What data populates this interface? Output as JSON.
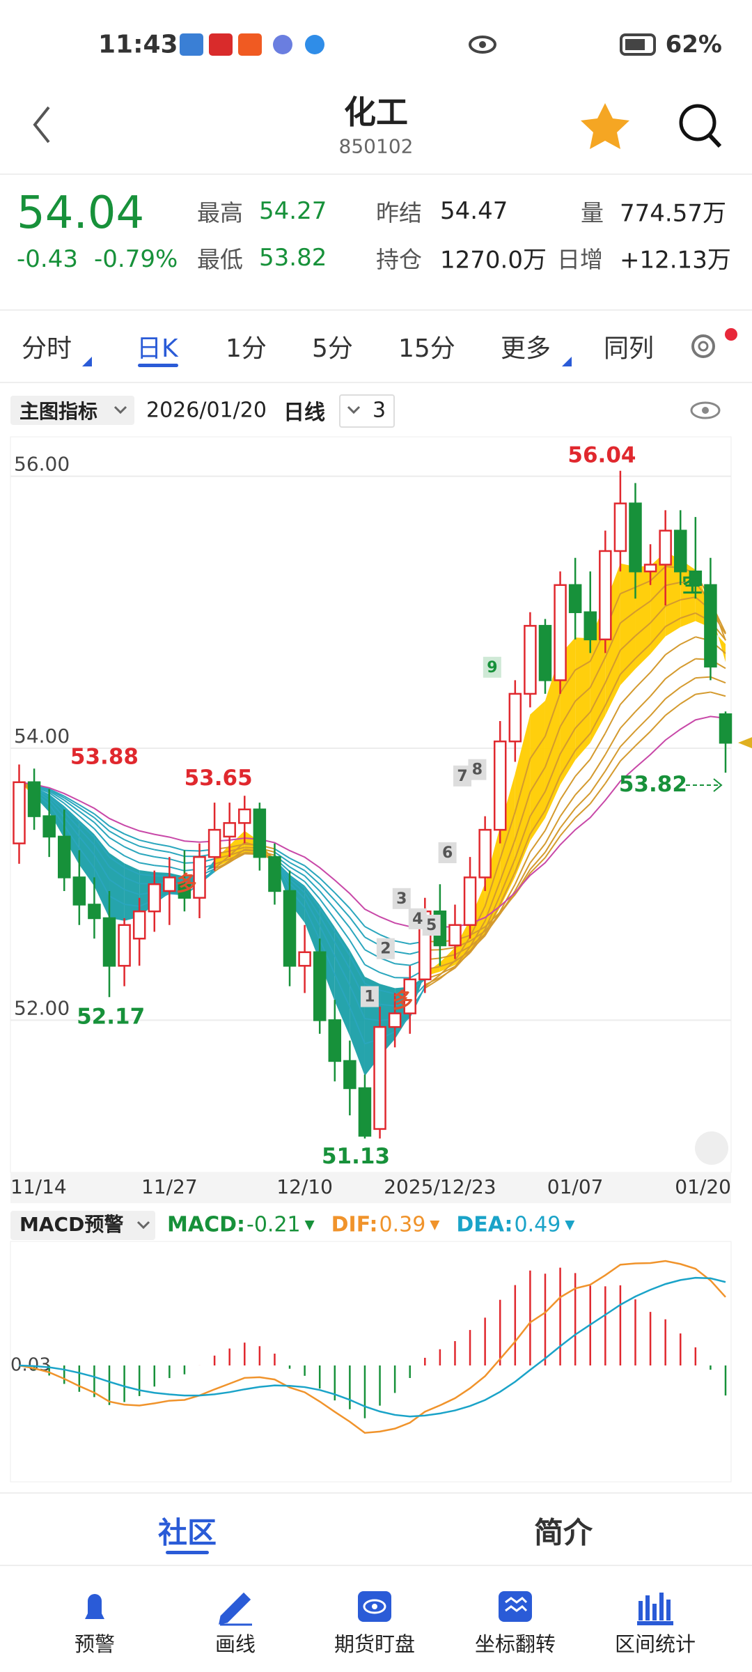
{
  "status_bar": {
    "time": "11:43",
    "battery": "62%"
  },
  "header": {
    "title": "化工",
    "code": "850102"
  },
  "quote": {
    "price": "54.04",
    "change": "-0.43",
    "change_pct": "-0.79%",
    "fields": [
      {
        "label": "最高",
        "value": "54.27"
      },
      {
        "label": "最低",
        "value": "53.82"
      },
      {
        "label": "昨结",
        "value": "54.47"
      },
      {
        "label": "持仓",
        "value": "1270.0万"
      },
      {
        "label": "量",
        "value": "774.57万"
      },
      {
        "label": "日增",
        "value": "+12.13万"
      }
    ]
  },
  "tabs": [
    "分时",
    "日K",
    "1分",
    "5分",
    "15分",
    "更多",
    "同列"
  ],
  "toolbar": {
    "indicator": "主图指标",
    "date": "2026/01/20",
    "period": "日线",
    "count": "3"
  },
  "chart_data": {
    "type": "candlestick",
    "categories": [
      "11/14",
      null,
      null,
      null,
      null,
      null,
      null,
      null,
      null,
      null,
      "11/27",
      null,
      null,
      null,
      null,
      null,
      null,
      null,
      null,
      "12/10",
      null,
      null,
      null,
      null,
      null,
      null,
      null,
      null,
      "2025/12/23",
      null,
      null,
      null,
      null,
      null,
      null,
      null,
      null,
      "01/07",
      null,
      null,
      null,
      null,
      null,
      null,
      null,
      null,
      null,
      "01/20"
    ],
    "open": [
      53.3,
      53.75,
      53.5,
      53.35,
      53.05,
      52.85,
      52.75,
      52.4,
      52.6,
      52.8,
      52.95,
      53.0,
      52.9,
      53.2,
      53.35,
      53.45,
      53.55,
      53.2,
      52.95,
      52.4,
      52.5,
      52.0,
      51.7,
      51.5,
      51.2,
      51.95,
      52.05,
      52.3,
      52.8,
      52.55,
      52.7,
      53.05,
      53.4,
      54.05,
      54.4,
      54.9,
      54.5,
      55.2,
      55.0,
      54.8,
      55.45,
      55.8,
      55.3,
      55.35,
      55.6,
      55.3,
      55.2,
      54.25
    ],
    "high": [
      53.88,
      53.85,
      53.7,
      53.55,
      53.25,
      53.05,
      52.95,
      52.75,
      52.9,
      53.1,
      53.2,
      53.25,
      53.3,
      53.6,
      53.6,
      53.65,
      53.6,
      53.3,
      53.1,
      52.7,
      52.6,
      52.15,
      51.85,
      51.6,
      52.1,
      52.2,
      52.4,
      52.9,
      53.0,
      52.85,
      53.2,
      53.5,
      54.2,
      54.5,
      55.0,
      54.95,
      55.3,
      55.4,
      55.3,
      55.6,
      56.04,
      55.95,
      55.5,
      55.75,
      55.75,
      55.7,
      55.4,
      54.27
    ],
    "low": [
      53.15,
      53.4,
      53.2,
      52.95,
      52.7,
      52.6,
      52.17,
      52.25,
      52.4,
      52.65,
      52.7,
      52.8,
      52.75,
      53.1,
      53.2,
      53.3,
      53.1,
      52.85,
      52.25,
      52.2,
      51.9,
      51.55,
      51.3,
      51.13,
      51.13,
      51.8,
      51.9,
      52.2,
      52.4,
      52.45,
      52.6,
      52.95,
      53.3,
      53.9,
      54.3,
      54.4,
      54.4,
      54.8,
      54.7,
      54.7,
      55.3,
      55.1,
      55.2,
      55.05,
      55.2,
      55.1,
      54.5,
      53.82
    ],
    "close": [
      53.75,
      53.5,
      53.35,
      53.05,
      52.85,
      52.75,
      52.4,
      52.7,
      52.8,
      53.0,
      53.05,
      52.9,
      53.2,
      53.4,
      53.45,
      53.55,
      53.2,
      52.95,
      52.4,
      52.5,
      52.0,
      51.7,
      51.5,
      51.15,
      51.95,
      52.05,
      52.3,
      52.8,
      52.55,
      52.7,
      53.05,
      53.4,
      54.05,
      54.4,
      54.9,
      54.5,
      55.2,
      55.0,
      54.8,
      55.45,
      55.8,
      55.3,
      55.35,
      55.6,
      55.3,
      55.2,
      54.6,
      54.04
    ],
    "ylim": [
      50.88,
      56.29
    ],
    "yticks": [
      {
        "value": 52,
        "label": "52.00"
      },
      {
        "value": 54,
        "label": "54.00"
      },
      {
        "value": 56,
        "label": "56.00"
      }
    ],
    "up_color": "#e0282e",
    "down_color": "#17913a",
    "annotations": [
      {
        "value": 53.88,
        "color": "#e0282e"
      },
      {
        "value": 53.65,
        "color": "#e0282e"
      },
      {
        "value": 52.17,
        "color": "#17913a"
      },
      {
        "value": 51.13,
        "color": "#17913a"
      },
      {
        "value": 56.04,
        "color": "#e0282e"
      },
      {
        "value": 53.82,
        "color": "#17913a"
      }
    ],
    "signals": [
      "1",
      "2",
      "3",
      "4",
      "5",
      "6",
      "7",
      "8",
      "9"
    ],
    "trend_marks": [
      "多",
      "多",
      "空"
    ]
  },
  "macd": {
    "label": "MACD预警",
    "items": [
      {
        "name": "MACD:",
        "value": "-0.21",
        "color": "#17913a"
      },
      {
        "name": "DIF:",
        "value": "0.39",
        "color": "#f0932b"
      },
      {
        "name": "DEA:",
        "value": "0.49",
        "color": "#1aa3c8"
      }
    ],
    "axis_label": "0.03"
  },
  "bottom_tabs": [
    "社区",
    "简介"
  ],
  "nav": [
    "预警",
    "画线",
    "期货盯盘",
    "坐标翻转",
    "区间统计"
  ]
}
